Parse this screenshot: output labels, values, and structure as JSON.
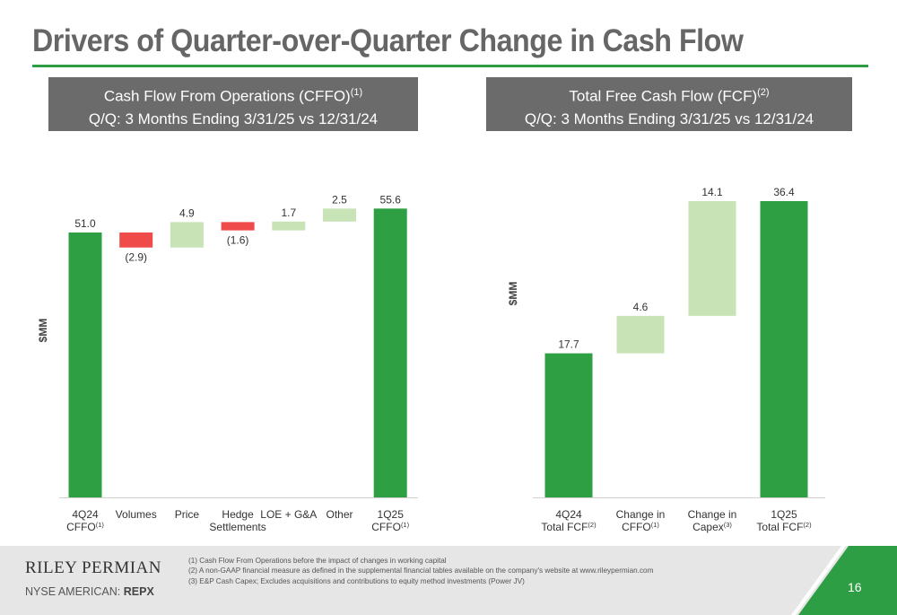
{
  "page": {
    "title": "Drivers of Quarter-over-Quarter Change in Cash Flow",
    "page_number": "16",
    "accent_color": "#2e9e45",
    "header_color": "#6b6b6b"
  },
  "panels": {
    "left": {
      "header_line1": "Cash Flow From Operations (CFFO)",
      "header_line1_sup": "(1)",
      "header_line2": "Q/Q: 3 Months Ending 3/31/25 vs 12/31/24"
    },
    "right": {
      "header_line1": "Total Free Cash Flow (FCF)",
      "header_line1_sup": "(2)",
      "header_line2": "Q/Q: 3 Months Ending 3/31/25 vs 12/31/24"
    }
  },
  "chart_data": [
    {
      "type": "bar",
      "subtype": "waterfall",
      "ylabel": "$MM",
      "ylim": [
        0,
        56
      ],
      "colors": {
        "total": "#2ea043",
        "increase": "#c8e3b6",
        "decrease": "#f04b4b"
      },
      "categories": [
        {
          "label": [
            "4Q24",
            "CFFO"
          ],
          "sup": "(1)"
        },
        {
          "label": [
            "Volumes"
          ],
          "sup": ""
        },
        {
          "label": [
            "Price"
          ],
          "sup": ""
        },
        {
          "label": [
            "Hedge",
            "Settlements"
          ],
          "sup": ""
        },
        {
          "label": [
            "LOE + G&A"
          ],
          "sup": ""
        },
        {
          "label": [
            "Other"
          ],
          "sup": ""
        },
        {
          "label": [
            "1Q25",
            "CFFO"
          ],
          "sup": "(1)"
        }
      ],
      "values": [
        51.0,
        -2.9,
        4.9,
        -1.6,
        1.7,
        2.5,
        55.6
      ],
      "kinds": [
        "total",
        "decrease",
        "increase",
        "decrease",
        "increase",
        "increase",
        "total"
      ],
      "data_labels": [
        "51.0",
        "(2.9)",
        "4.9",
        "(1.6)",
        "1.7",
        "2.5",
        "55.6"
      ]
    },
    {
      "type": "bar",
      "subtype": "waterfall",
      "ylabel": "$MM",
      "ylim": [
        0,
        36.4
      ],
      "colors": {
        "total": "#2ea043",
        "increase": "#c8e3b6",
        "decrease": "#f04b4b"
      },
      "categories": [
        {
          "label": [
            "4Q24",
            "Total FCF"
          ],
          "sup": "(2)"
        },
        {
          "label": [
            "Change in",
            "CFFO"
          ],
          "sup": "(1)"
        },
        {
          "label": [
            "Change in",
            "Capex"
          ],
          "sup": "(3)"
        },
        {
          "label": [
            "1Q25",
            "Total FCF"
          ],
          "sup": "(2)"
        }
      ],
      "values": [
        17.7,
        4.6,
        14.1,
        36.4
      ],
      "kinds": [
        "total",
        "increase",
        "increase",
        "total"
      ],
      "data_labels": [
        "17.7",
        "4.6",
        "14.1",
        "36.4"
      ]
    }
  ],
  "footer": {
    "company_name": "RILEY PERMIAN",
    "exchange_label": "NYSE AMERICAN: ",
    "ticker": "REPX",
    "footnotes": [
      "(1)  Cash Flow From Operations before the impact of changes in working capital",
      "(2)  A non-GAAP financial measure as defined in the supplemental financial tables available on the company's website at www.rileypermian.com",
      "(3)  E&P Cash Capex; Excludes acquisitions and contributions to equity method investments (Power JV)"
    ]
  }
}
